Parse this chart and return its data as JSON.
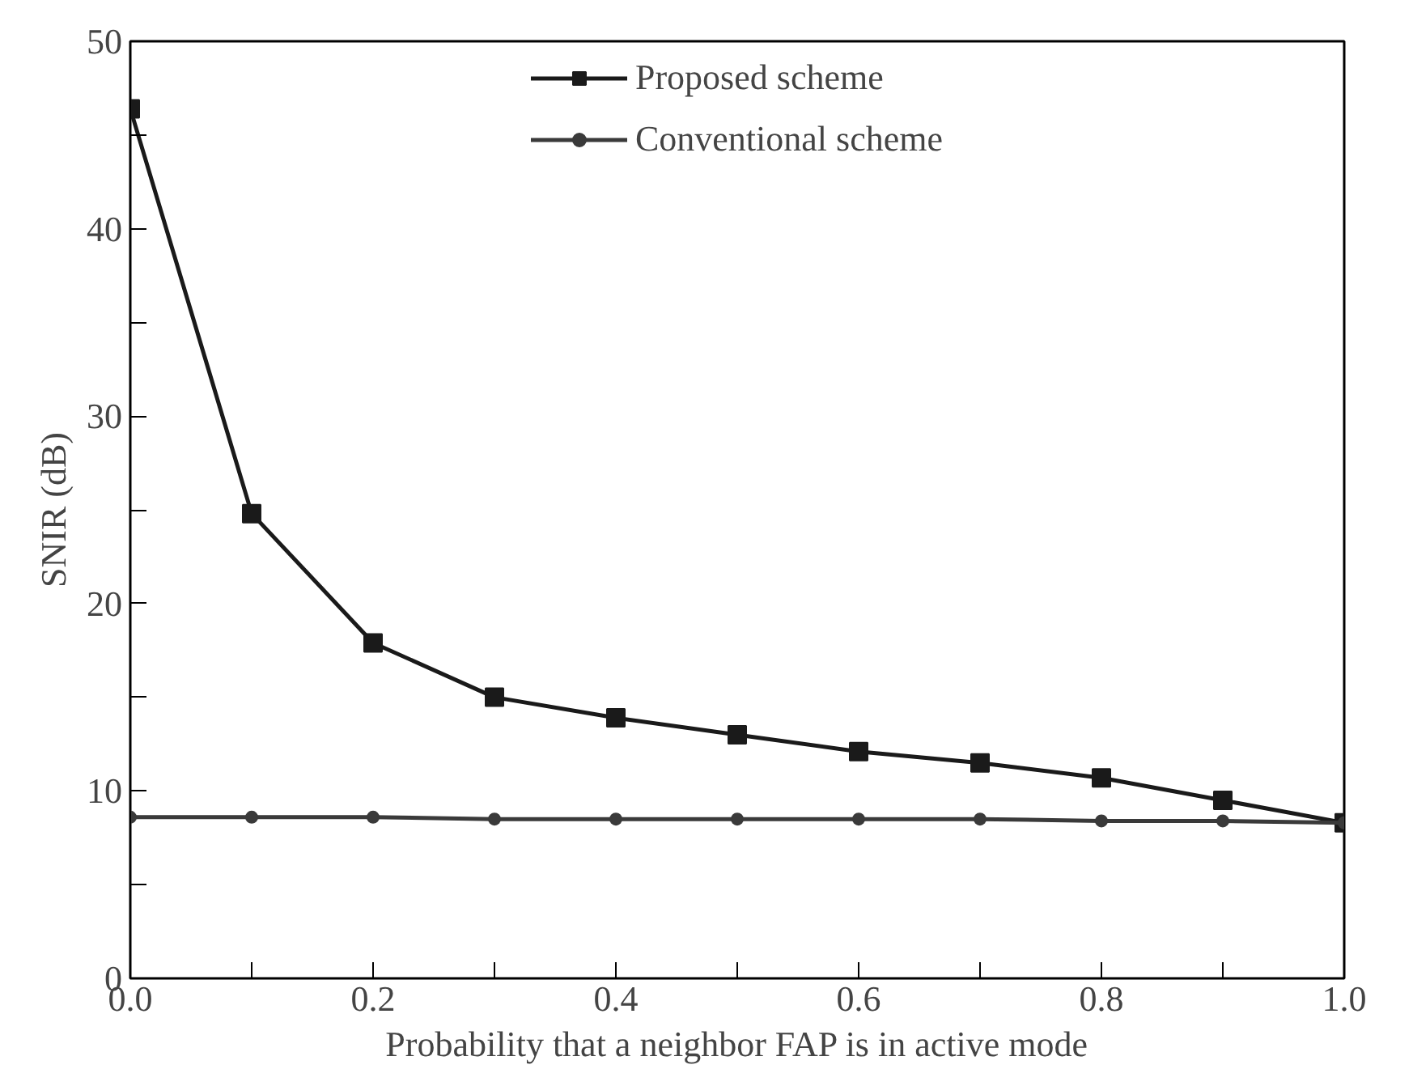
{
  "chart_data": {
    "type": "line",
    "xlabel": "Probability that a neighbor FAP is in active mode",
    "ylabel": "SNIR (dB)",
    "x": [
      0.0,
      0.1,
      0.2,
      0.3,
      0.4,
      0.5,
      0.6,
      0.7,
      0.8,
      0.9,
      1.0
    ],
    "series": [
      {
        "name": "Proposed scheme",
        "color": "#1a1a1a",
        "marker": "square",
        "values": [
          46.4,
          24.8,
          17.9,
          15.0,
          13.9,
          13.0,
          12.1,
          11.5,
          10.7,
          9.5,
          8.3
        ]
      },
      {
        "name": "Conventional scheme",
        "color": "#3a3a3a",
        "marker": "circle",
        "values": [
          8.6,
          8.6,
          8.6,
          8.5,
          8.5,
          8.5,
          8.5,
          8.5,
          8.4,
          8.4,
          8.3
        ]
      }
    ],
    "xlim": [
      0,
      1.0
    ],
    "ylim": [
      0,
      50
    ],
    "xticks": [
      {
        "value": 0,
        "label": "0.0"
      },
      {
        "value": 0.1,
        "label": null
      },
      {
        "value": 0.2,
        "label": "0.2"
      },
      {
        "value": 0.3,
        "label": null
      },
      {
        "value": 0.4,
        "label": "0.4"
      },
      {
        "value": 0.5,
        "label": null
      },
      {
        "value": 0.6,
        "label": "0.6"
      },
      {
        "value": 0.7,
        "label": null
      },
      {
        "value": 0.8,
        "label": "0.8"
      },
      {
        "value": 0.9,
        "label": null
      },
      {
        "value": 1.0,
        "label": "1.0"
      }
    ],
    "yticks": [
      0,
      {
        "value": 5,
        "label": null
      },
      10,
      {
        "value": 15,
        "label": null
      },
      20,
      {
        "value": 25,
        "label": null
      },
      30,
      {
        "value": 35,
        "label": null
      },
      40,
      {
        "value": 45,
        "label": null
      },
      50
    ],
    "grid": false,
    "legend": "top",
    "line_style": "solid"
  }
}
